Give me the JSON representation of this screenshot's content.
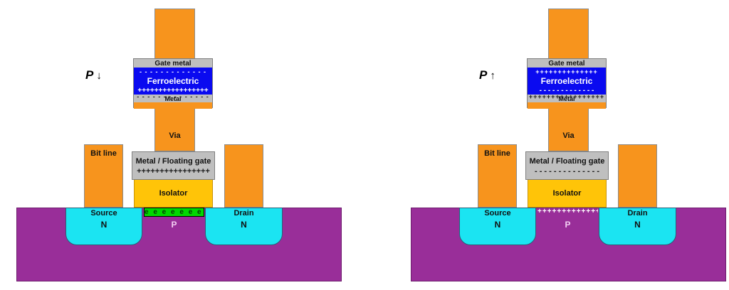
{
  "figure": "Ferroelectric FET (FeFET) memory cell in two polarization states",
  "colors": {
    "metal_contact_orange": "#F7941D",
    "metal_gray": "#BFBFBF",
    "ferroelectric_blue": "#0A0AF0",
    "isolator_yellow": "#FFC408",
    "substrate_purple": "#992E99",
    "well_cyan": "#1BE4F2",
    "electron_channel_green": "#00D800",
    "background": "#FFFFFF"
  },
  "devices": {
    "left": {
      "state_label": "P",
      "state_arrow": "↓",
      "gate_metal_label": "Gate metal",
      "ferro_top_row": "- - - - - - - - - - - - -",
      "ferro_label": "Ferroelectric",
      "ferro_bottom_row": "+++++++++++++++++",
      "metal_row": "- - - - - - - - - - - - - -",
      "metal_label": "Metal",
      "via_label": "Via",
      "bit_line_label": "Bit line",
      "fg_label": "Metal / Floating gate",
      "fg_row": "++++++++++++++++",
      "isolator_label": "Isolator",
      "channel_text": "e e e e e e e e",
      "source_label": "Source",
      "source_type": "N",
      "drain_label": "Drain",
      "drain_type": "N",
      "body_label": "P"
    },
    "right": {
      "state_label": "P",
      "state_arrow": "↑",
      "gate_metal_label": "Gate metal",
      "ferro_top_row": "++++++++++++++",
      "ferro_label": "Ferroelectric",
      "ferro_bottom_row": "- - - - - - - - - - - - -",
      "metal_row": "+++++++++++++++++",
      "metal_label": "Metal",
      "via_label": "Via",
      "bit_line_label": "Bit line",
      "fg_label": "Metal / Floating gate",
      "fg_row": "- - - - - - - - - - - - - -",
      "isolator_label": "Isolator",
      "channel_text": "+++++++++++++",
      "source_label": "Source",
      "source_type": "N",
      "drain_label": "Drain",
      "drain_type": "N",
      "body_label": "P"
    }
  }
}
